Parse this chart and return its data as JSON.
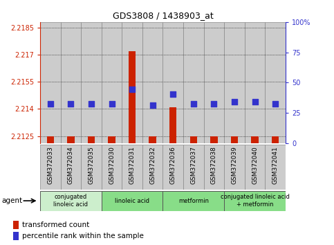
{
  "title": "GDS3808 / 1438903_at",
  "samples": [
    "GSM372033",
    "GSM372034",
    "GSM372035",
    "GSM372030",
    "GSM372031",
    "GSM372032",
    "GSM372036",
    "GSM372037",
    "GSM372038",
    "GSM372039",
    "GSM372040",
    "GSM372041"
  ],
  "transformed_count": [
    2.2125,
    2.2125,
    2.2125,
    2.2125,
    2.2172,
    2.2125,
    2.2141,
    2.2125,
    2.2125,
    2.2125,
    2.2125,
    2.2125
  ],
  "percentile_rank": [
    2.2143,
    2.2143,
    2.2143,
    2.2143,
    2.2151,
    2.2142,
    2.2148,
    2.2143,
    2.2143,
    2.2144,
    2.2144,
    2.2143
  ],
  "ylim_left": [
    2.2121,
    2.2188
  ],
  "yticks_left": [
    2.2125,
    2.214,
    2.2155,
    2.217,
    2.2185
  ],
  "ytick_labels_left": [
    "2.2125",
    "2.214",
    "2.2155",
    "2.217",
    "2.2185"
  ],
  "yticks_right_pct": [
    0,
    25,
    50,
    75,
    100
  ],
  "ytick_labels_right": [
    "0",
    "25",
    "50",
    "75",
    "100%"
  ],
  "agent_groups": [
    {
      "label": "conjugated\nlinoleic acid",
      "start": 0,
      "end": 3,
      "color": "#cceecc"
    },
    {
      "label": "linoleic acid",
      "start": 3,
      "end": 6,
      "color": "#88dd88"
    },
    {
      "label": "metformin",
      "start": 6,
      "end": 9,
      "color": "#88dd88"
    },
    {
      "label": "conjugated linoleic acid\n+ metformin",
      "start": 9,
      "end": 12,
      "color": "#88dd88"
    }
  ],
  "bar_color": "#cc2200",
  "dot_color": "#3333cc",
  "grid_color": "#000000",
  "sample_bg": "#cccccc",
  "sample_border": "#888888",
  "bar_width": 0.35,
  "dot_size": 30,
  "left_axis_color": "#cc2200",
  "right_axis_color": "#3333cc"
}
